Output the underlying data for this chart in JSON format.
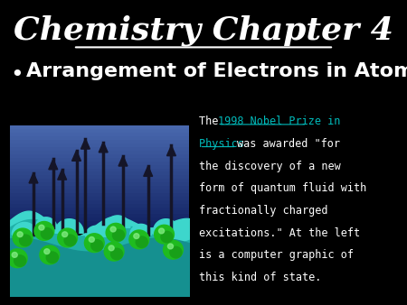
{
  "background_color": "#000000",
  "title": "Chemistry Chapter 4",
  "title_color": "#ffffff",
  "title_fontsize": 26,
  "bullet_text": "Arrangement of Electrons in Atoms",
  "bullet_color": "#ffffff",
  "bullet_fontsize": 16,
  "body_color": "#ffffff",
  "link_color": "#00bbbb",
  "body_fontsize": 8.5,
  "lines_data": [
    [
      [
        "The ",
        "white"
      ],
      [
        "1998 Nobel Prize in",
        "#00bbbb"
      ]
    ],
    [
      [
        "Physics ",
        "#00bbbb"
      ],
      [
        "was awarded \"for"
      ]
    ],
    [
      [
        "the discovery of a new",
        "white"
      ]
    ],
    [
      [
        "form of quantum fluid with",
        "white"
      ]
    ],
    [
      [
        "fractionally charged",
        "white"
      ]
    ],
    [
      [
        "excitations.\" At the left",
        "white"
      ]
    ],
    [
      [
        "is a computer graphic of",
        "white"
      ]
    ],
    [
      [
        "this kind of state.",
        "white"
      ]
    ]
  ]
}
